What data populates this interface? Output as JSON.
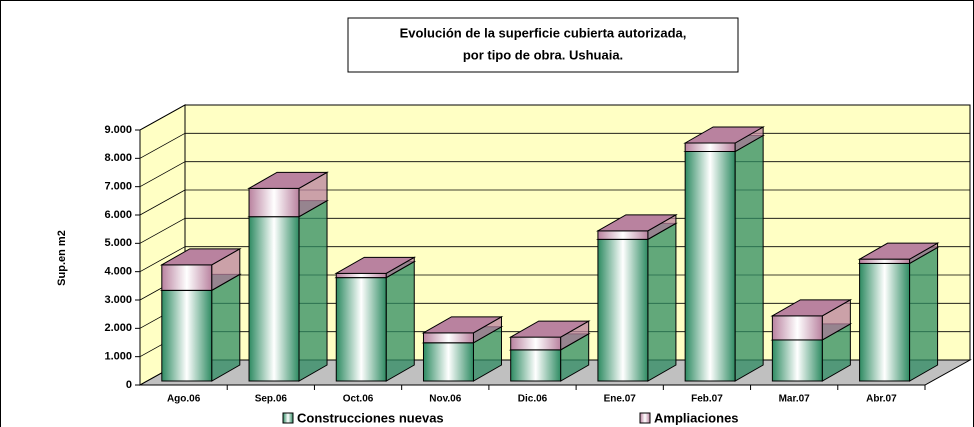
{
  "chart_data": {
    "type": "bar",
    "stacked": true,
    "title": "Evolución de la superficie cubierta autorizada,",
    "subtitle": "por tipo de obra. Ushuaia.",
    "y_label": "Sup.en m2",
    "categories": [
      "Ago.06",
      "Sep.06",
      "Oct.06",
      "Nov.06",
      "Dic.06",
      "Ene.07",
      "Feb.07",
      "Mar.07",
      "Abr.07"
    ],
    "series": [
      {
        "name": "Construcciones  nuevas",
        "color": "#2e8b62",
        "values": [
          3200,
          5800,
          3650,
          1350,
          1100,
          5000,
          8100,
          1450,
          4150
        ]
      },
      {
        "name": "Ampliaciones",
        "color": "#b9829f",
        "values": [
          900,
          1000,
          150,
          350,
          450,
          300,
          300,
          850,
          150
        ]
      }
    ],
    "ylim": [
      0,
      9000
    ],
    "yticks": [
      0,
      {
        "value": 1000,
        "label": "1.000"
      },
      {
        "value": 2000,
        "label": "2.000"
      },
      {
        "value": 3000,
        "label": "3.000"
      },
      {
        "value": 4000,
        "label": "4.000"
      },
      {
        "value": 5000,
        "label": "5.000"
      },
      {
        "value": 6000,
        "label": "6.000"
      },
      {
        "value": 7000,
        "label": "7.000"
      },
      {
        "value": 8000,
        "label": "8.000"
      },
      {
        "value": 9000,
        "label": "9.000"
      }
    ],
    "grid": true,
    "legend": "bottom"
  }
}
